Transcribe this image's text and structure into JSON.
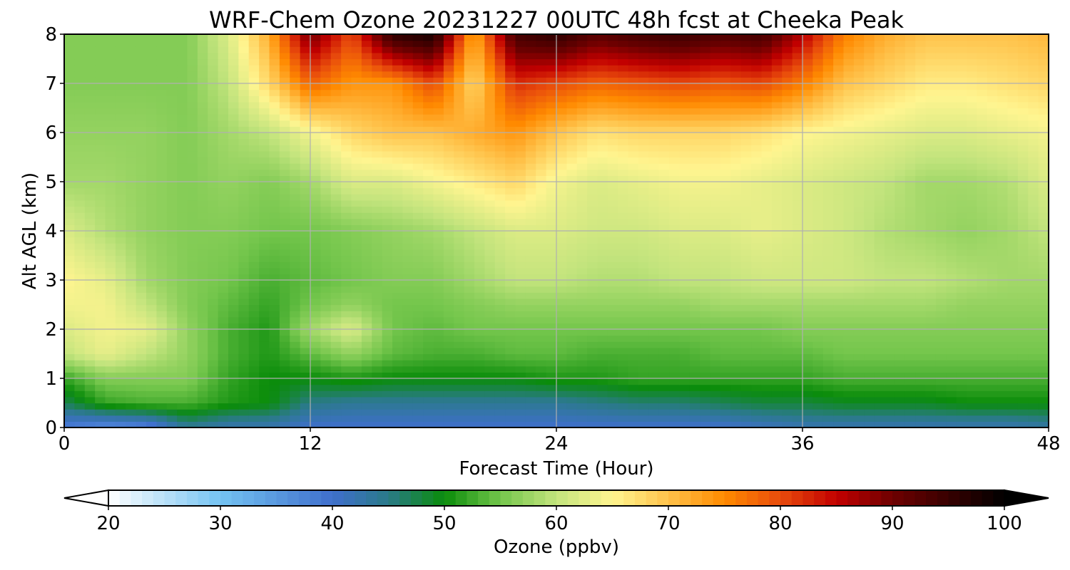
{
  "chart_data": {
    "type": "heatmap",
    "title": "WRF-Chem Ozone  20231227 00UTC 48h fcst at Cheeka Peak",
    "xlabel": "Forecast Time (Hour)",
    "ylabel": "Alt AGL (km)",
    "xlim": [
      0,
      48
    ],
    "ylim": [
      0,
      8
    ],
    "x_ticks": [
      0,
      12,
      24,
      36,
      48
    ],
    "y_ticks": [
      0,
      1,
      2,
      3,
      4,
      5,
      6,
      7,
      8
    ],
    "grid": true,
    "z_unit": "ppbv",
    "x_hours": [
      0,
      2,
      4,
      6,
      8,
      10,
      12,
      14,
      16,
      18,
      20,
      22,
      24,
      26,
      28,
      30,
      32,
      34,
      36,
      38,
      40,
      42,
      44,
      46,
      48
    ],
    "y_levels_km": [
      0,
      0.5,
      1,
      1.5,
      2,
      2.5,
      3,
      4,
      5,
      6,
      7,
      8
    ],
    "ozone_ppbv": [
      [
        38,
        36,
        37,
        44,
        42,
        42,
        40,
        40,
        40,
        40,
        40,
        40,
        40,
        40,
        40,
        40,
        40,
        41,
        42,
        42,
        42,
        42,
        42,
        42,
        43
      ],
      [
        47,
        52,
        53,
        53,
        51,
        50,
        45,
        44,
        44,
        44,
        44,
        44,
        44,
        45,
        46,
        46,
        47,
        48,
        48,
        49,
        49,
        49,
        50,
        50,
        50
      ],
      [
        52,
        56,
        56,
        56,
        52,
        50,
        50,
        51,
        50,
        50,
        50,
        50,
        51,
        51,
        52,
        52,
        52,
        52,
        52,
        53,
        53,
        53,
        53,
        53,
        53
      ],
      [
        60,
        63,
        60,
        57,
        53,
        51,
        54,
        57,
        54,
        53,
        53,
        54,
        54,
        53,
        53,
        53,
        54,
        54,
        54,
        55,
        55,
        55,
        55,
        55,
        55
      ],
      [
        62,
        64,
        63,
        57,
        53,
        51,
        58,
        62,
        55,
        54,
        55,
        55,
        55,
        55,
        55,
        55,
        55,
        55,
        56,
        56,
        56,
        56,
        56,
        56,
        56
      ],
      [
        64,
        64,
        60,
        56,
        54,
        52,
        55,
        57,
        55,
        55,
        56,
        57,
        57,
        57,
        57,
        57,
        58,
        58,
        58,
        58,
        58,
        58,
        57,
        57,
        57
      ],
      [
        65,
        63,
        58,
        56,
        55,
        53,
        54,
        55,
        56,
        56,
        58,
        60,
        60,
        59,
        59,
        60,
        60,
        61,
        61,
        61,
        60,
        60,
        59,
        58,
        58
      ],
      [
        62,
        59,
        57,
        56,
        56,
        55,
        55,
        56,
        57,
        58,
        60,
        62,
        62,
        61,
        61,
        62,
        62,
        63,
        62,
        61,
        59,
        58,
        57,
        58,
        60
      ],
      [
        58,
        58,
        57,
        56,
        57,
        56,
        58,
        62,
        62,
        64,
        66,
        68,
        64,
        62,
        63,
        64,
        64,
        63,
        62,
        61,
        60,
        58,
        58,
        59,
        62
      ],
      [
        57,
        57,
        57,
        56,
        58,
        60,
        64,
        68,
        70,
        70,
        72,
        74,
        70,
        67,
        68,
        68,
        68,
        67,
        65,
        64,
        63,
        62,
        62,
        63,
        64
      ],
      [
        56,
        56,
        56,
        56,
        60,
        68,
        78,
        74,
        74,
        80,
        68,
        82,
        80,
        78,
        79,
        80,
        79,
        80,
        76,
        70,
        68,
        66,
        66,
        67,
        68
      ],
      [
        56,
        56,
        56,
        56,
        62,
        72,
        90,
        80,
        96,
        98,
        72,
        94,
        96,
        92,
        94,
        95,
        93,
        94,
        86,
        76,
        72,
        70,
        70,
        70,
        71
      ]
    ],
    "colorbar": {
      "label": "Ozone  (ppbv)",
      "min": 20,
      "max": 100,
      "ticks": [
        20,
        30,
        40,
        50,
        60,
        70,
        80,
        90,
        100
      ],
      "extend": "both",
      "anchor_values": [
        20,
        30,
        40,
        45,
        50,
        55,
        60,
        65,
        70,
        75,
        80,
        85,
        90,
        100
      ],
      "anchor_colors": [
        "#ffffff",
        "#74c3f2",
        "#3f6fcc",
        "#2a7a88",
        "#0a8c0a",
        "#74c64c",
        "#c3e47d",
        "#fff590",
        "#ffc24a",
        "#ff8a00",
        "#e84b0c",
        "#c20000",
        "#6e0000",
        "#000000"
      ]
    }
  }
}
